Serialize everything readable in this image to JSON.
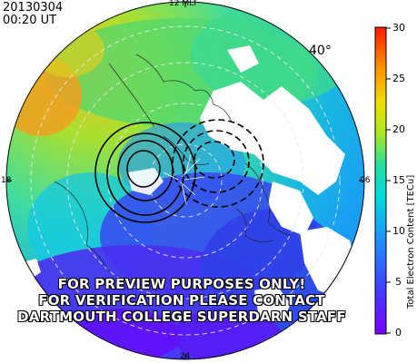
{
  "header": {
    "date": "20130304",
    "time": "00:20 UT"
  },
  "mlt_labels": {
    "top": "12 MLT",
    "left": "18",
    "right": "06",
    "bottom": "24"
  },
  "latitude_label": "40°",
  "colorbar": {
    "title": "Total Electron Content [TECu]",
    "ticks": [
      "30",
      "25",
      "20",
      "15",
      "10",
      "5",
      "0"
    ],
    "range": [
      0,
      30
    ]
  },
  "watermark": {
    "line1": "FOR PREVIEW PURPOSES ONLY!",
    "line2": "FOR VERIFICATION PLEASE CONTACT",
    "line3": "DARTMOUTH COLLEGE SUPERDARN STAFF"
  }
}
